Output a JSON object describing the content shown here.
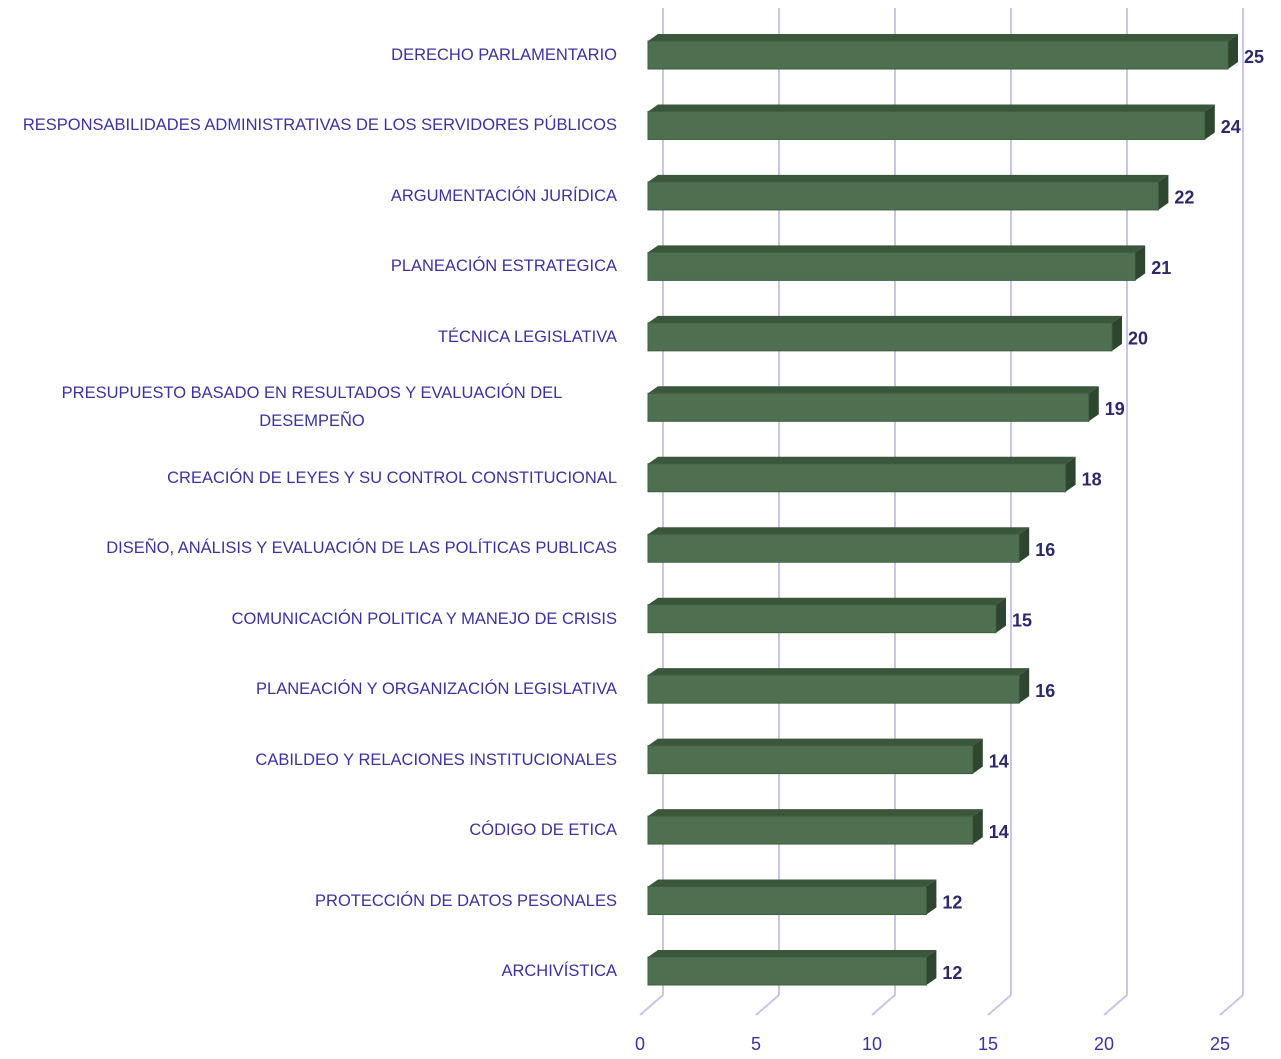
{
  "chart_data": {
    "type": "bar3d_horizontal",
    "categories": [
      "DERECHO PARLAMENTARIO",
      "RESPONSABILIDADES ADMINISTRATIVAS DE LOS SERVIDORES PÚBLICOS",
      "ARGUMENTACIÓN JURÍDICA",
      "PLANEACIÓN ESTRATEGICA",
      "TÉCNICA LEGISLATIVA",
      "PRESUPUESTO BASADO EN RESULTADOS Y EVALUACIÓN DEL DESEMPEÑO",
      "CREACIÓN DE LEYES Y SU CONTROL CONSTITUCIONAL",
      "DISEÑO, ANÁLISIS Y EVALUACIÓN DE LAS POLÍTICAS PUBLICAS",
      "COMUNICACIÓN POLITICA Y MANEJO DE CRISIS",
      "PLANEACIÓN Y ORGANIZACIÓN LEGISLATIVA",
      "CABILDEO Y RELACIONES INSTITUCIONALES",
      "CÓDIGO DE ETICA",
      "PROTECCIÓN DE DATOS PESONALES",
      "ARCHIVÍSTICA"
    ],
    "values": [
      25,
      24,
      22,
      21,
      20,
      19,
      18,
      16,
      15,
      16,
      14,
      14,
      12,
      12
    ],
    "color": "#4e7050",
    "xlim": [
      0,
      25
    ],
    "xticks": [
      0,
      5,
      10,
      15,
      20,
      25
    ],
    "grid": true
  }
}
